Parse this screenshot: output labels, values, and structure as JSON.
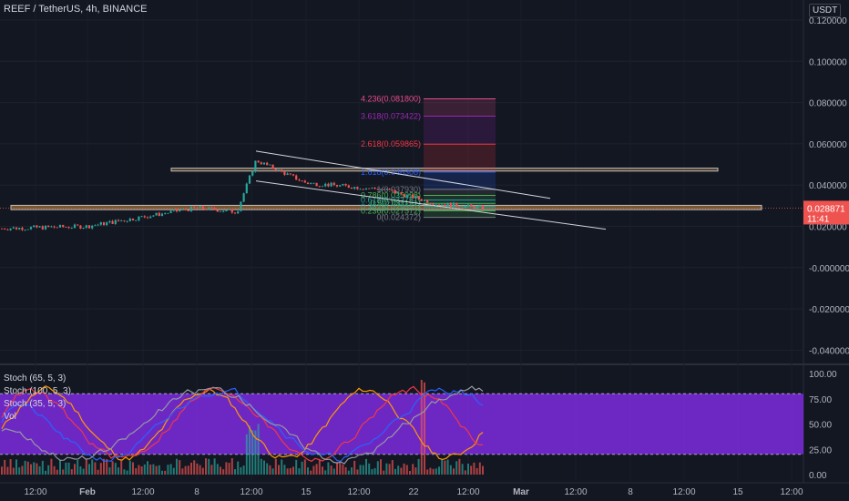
{
  "header": {
    "title": "REEF / TetherUS, 4h, BINANCE",
    "currency_badge": "USDT"
  },
  "price_axis": {
    "labels": [
      "0.120000",
      "0.100000",
      "0.080000",
      "0.060000",
      "0.040000",
      "0.020000",
      "-0.000000",
      "-0.020000",
      "-0.040000"
    ],
    "values": [
      0.12,
      0.1,
      0.08,
      0.06,
      0.04,
      0.02,
      0.0,
      -0.02,
      -0.04
    ],
    "current_price": "0.028871",
    "countdown": "11:41"
  },
  "time_axis": {
    "labels": [
      "12:00",
      "Feb",
      "12:00",
      "8",
      "12:00",
      "15",
      "12:00",
      "22",
      "12:00",
      "Mar",
      "12:00",
      "8",
      "12:00",
      "15",
      "12:00"
    ]
  },
  "indicator_pane": {
    "legend": [
      "Stoch (65, 5, 3)",
      "Stoch (100, 5, 3)",
      "Stoch (35, 5, 3)",
      "Vol"
    ],
    "axis_labels": [
      "100.00",
      "75.00",
      "50.00",
      "25.00",
      "0.00"
    ],
    "axis_values": [
      100,
      75,
      50,
      25,
      0
    ],
    "band": [
      20,
      80
    ]
  },
  "fib_levels": [
    {
      "label": "4.236(0.081800)",
      "value": 0.0818,
      "color": "#e84b8a"
    },
    {
      "label": "3.618(0.073422)",
      "value": 0.073422,
      "color": "#9c27b0"
    },
    {
      "label": "2.618(0.059865)",
      "value": 0.059865,
      "color": "#f23645"
    },
    {
      "label": "1.618(0.046308)",
      "value": 0.046308,
      "color": "#2962ff"
    },
    {
      "label": "1(0.037930)",
      "value": 0.03793,
      "color": "#787b86"
    },
    {
      "label": "0.786(0.035028)",
      "value": 0.035028,
      "color": "#4caf50"
    },
    {
      "label": "0.618(0.032751)",
      "value": 0.032751,
      "color": "#26a69a"
    },
    {
      "label": "0.5(0.031151)",
      "value": 0.031151,
      "color": "#4caf50"
    },
    {
      "label": "0.382(0.029551)",
      "value": 0.029551,
      "color": "#26a69a"
    },
    {
      "label": "0.236(0.027572)",
      "value": 0.027572,
      "color": "#4caf50"
    },
    {
      "label": "0(0.024372)",
      "value": 0.024372,
      "color": "#787b86"
    }
  ],
  "chart_data": {
    "type": "line",
    "title": "REEF / TetherUS, 4h, BINANCE",
    "x": [
      "12:00",
      "Feb",
      "12:00",
      "8",
      "12:00",
      "15",
      "12:00",
      "22",
      "12:00"
    ],
    "series": [
      {
        "name": "REEF / TetherUS",
        "values": [
          0.019,
          0.02,
          0.029,
          0.027,
          0.052,
          0.041,
          0.038,
          0.031,
          0.0289
        ]
      }
    ],
    "ylim": [
      -0.045,
      0.125
    ],
    "grid": true,
    "colors": {
      "up": "#26a69a",
      "down": "#ef5350",
      "band": "#7e2be0",
      "zone": "#c88a3b"
    }
  }
}
